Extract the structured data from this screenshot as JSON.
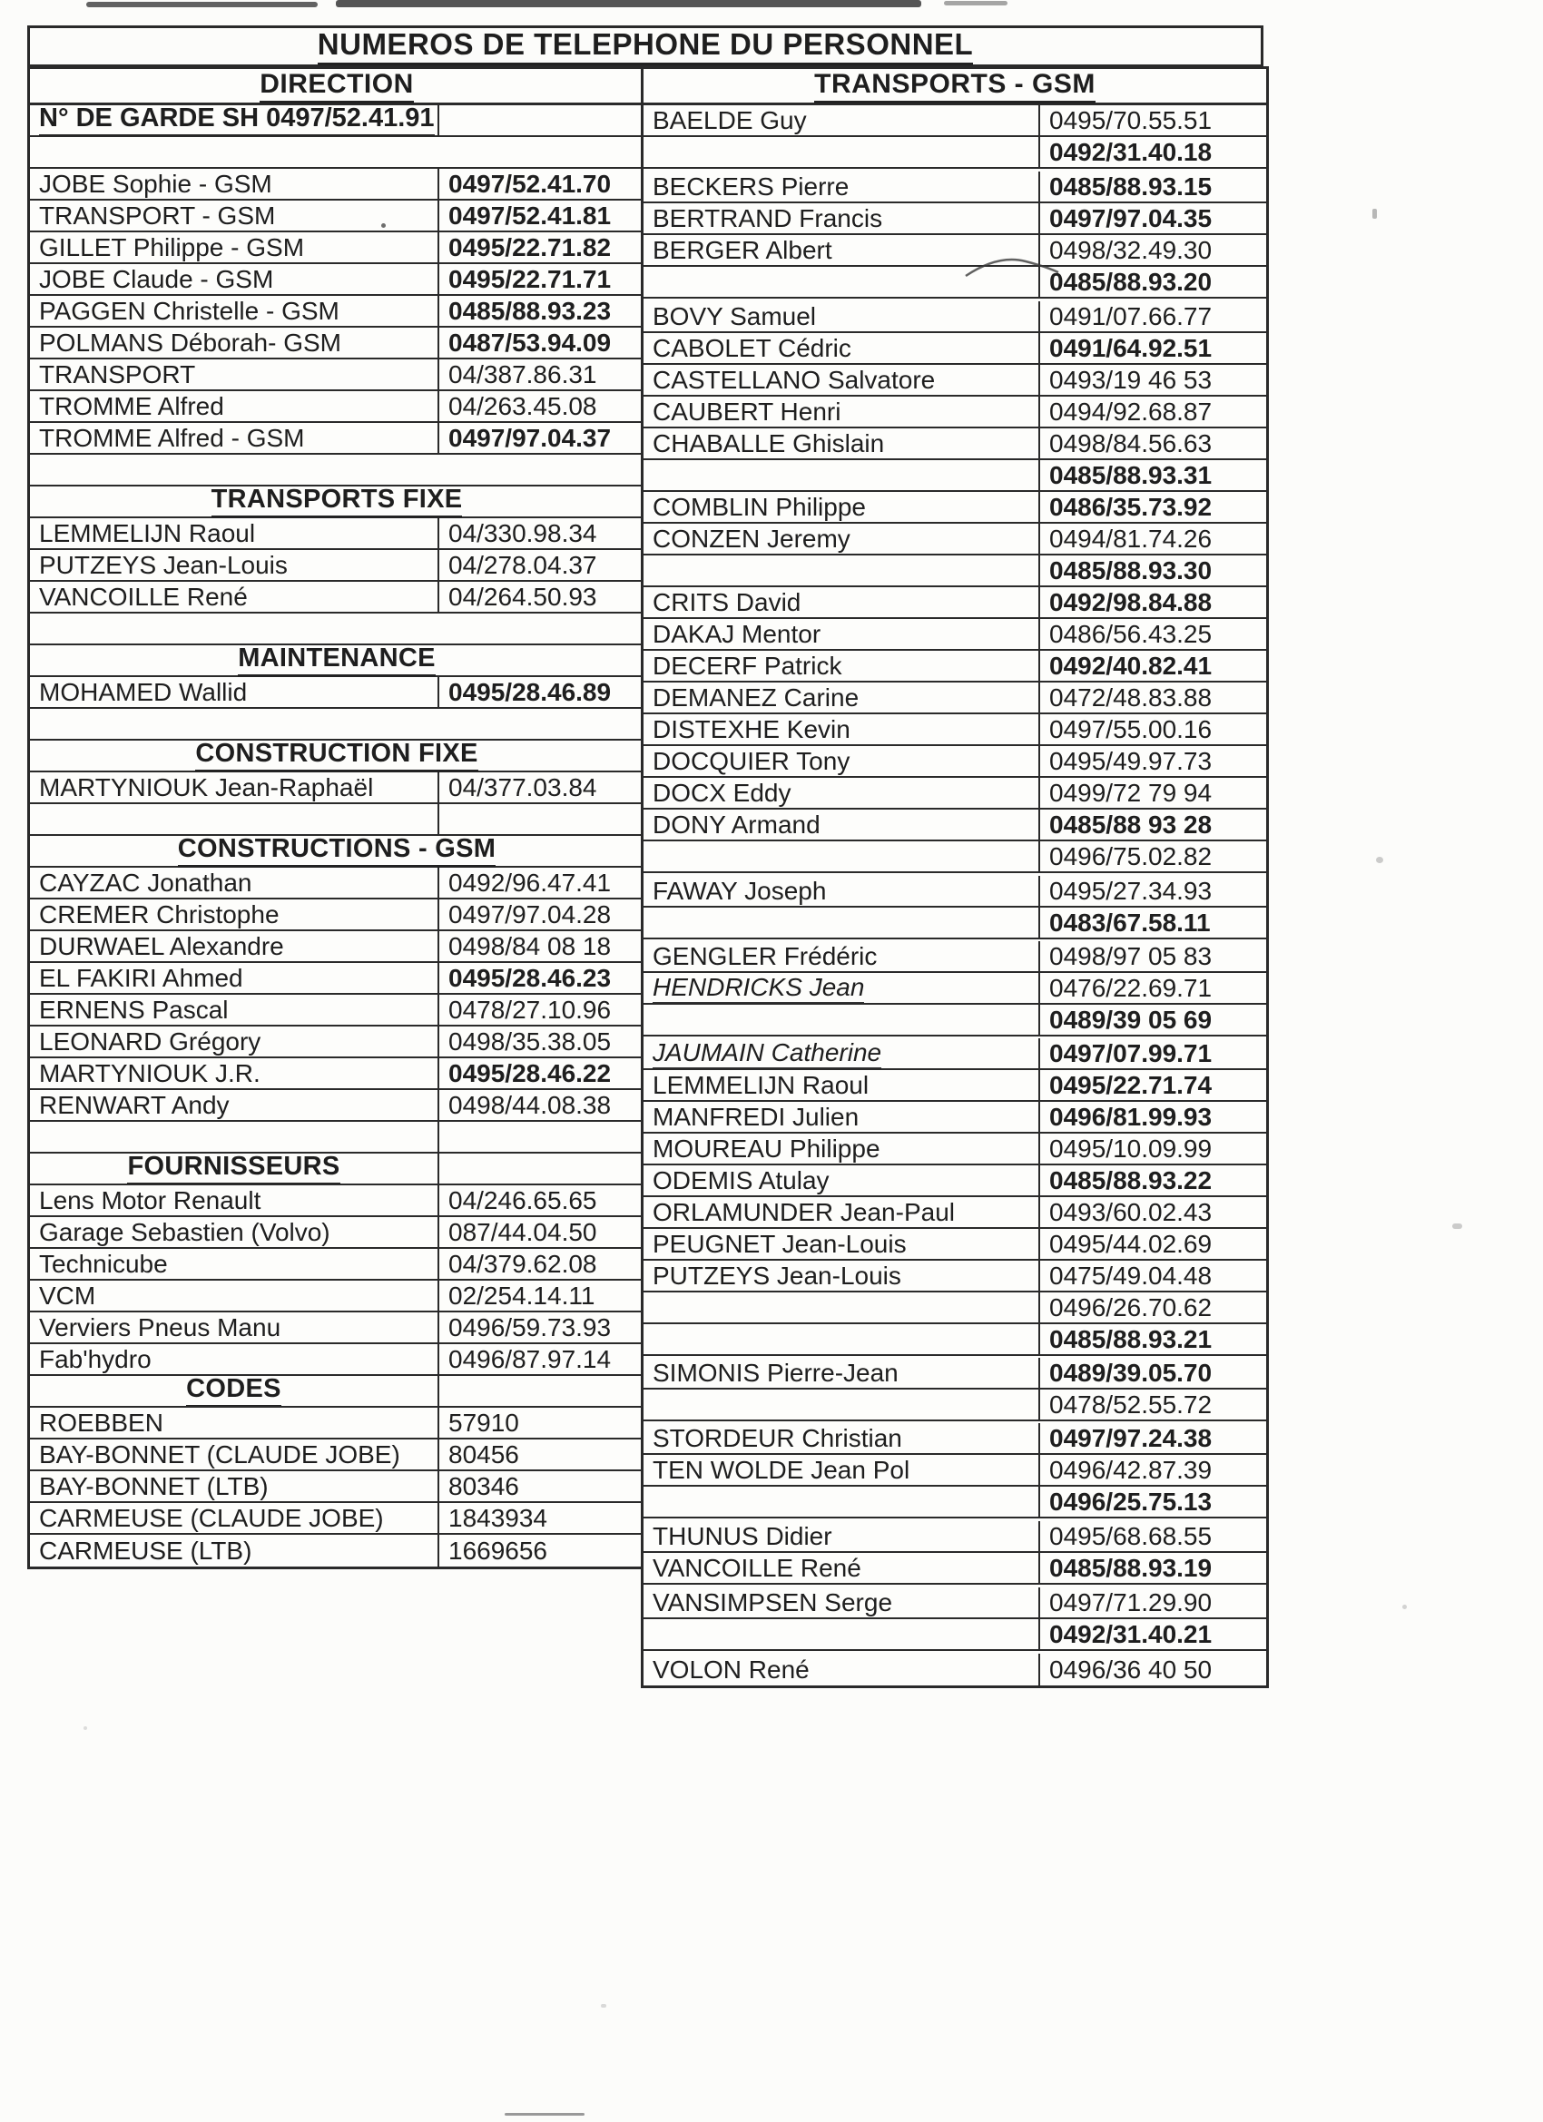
{
  "title": "NUMEROS DE TELEPHONE DU PERSONNEL",
  "left": {
    "header": "DIRECTION",
    "rows": [
      {
        "t": "guard",
        "name": "N° DE GARDE SH 0497/52.41.91"
      },
      {
        "t": "blank"
      },
      {
        "t": "row",
        "name": "JOBE Sophie - GSM",
        "num": "0497/52.41.70",
        "nb": true
      },
      {
        "t": "row",
        "name": "TRANSPORT - GSM",
        "num": "0497/52.41.81",
        "nb": true
      },
      {
        "t": "row",
        "name": "GILLET Philippe - GSM",
        "num": "0495/22.71.82",
        "nb": true
      },
      {
        "t": "row",
        "name": "JOBE Claude - GSM",
        "num": "0495/22.71.71",
        "nb": true
      },
      {
        "t": "row",
        "name": "PAGGEN Christelle - GSM",
        "num": "0485/88.93.23",
        "nb": true
      },
      {
        "t": "row",
        "name": "POLMANS Déborah- GSM",
        "num": "0487/53.94.09",
        "nb": true
      },
      {
        "t": "row",
        "name": "TRANSPORT",
        "num": "04/387.86.31"
      },
      {
        "t": "row",
        "name": "TROMME Alfred",
        "num": "04/263.45.08"
      },
      {
        "t": "row",
        "name": "TROMME Alfred - GSM",
        "num": "0497/97.04.37",
        "nb": true
      },
      {
        "t": "blank"
      },
      {
        "t": "sec",
        "label": "TRANSPORTS FIXE"
      },
      {
        "t": "row",
        "name": "LEMMELIJN Raoul",
        "num": "04/330.98.34"
      },
      {
        "t": "row",
        "name": "PUTZEYS Jean-Louis",
        "num": "04/278.04.37"
      },
      {
        "t": "row",
        "name": "VANCOILLE René",
        "num": "04/264.50.93"
      },
      {
        "t": "blank"
      },
      {
        "t": "sec",
        "label": "MAINTENANCE"
      },
      {
        "t": "row",
        "name": "MOHAMED Wallid",
        "num": "0495/28.46.89",
        "nb": true
      },
      {
        "t": "blank"
      },
      {
        "t": "sec",
        "label": "CONSTRUCTION FIXE"
      },
      {
        "t": "row",
        "name": "MARTYNIOUK Jean-Raphaël",
        "num": "04/377.03.84"
      },
      {
        "t": "blank2"
      },
      {
        "t": "sec",
        "label": "CONSTRUCTIONS - GSM"
      },
      {
        "t": "row",
        "name": "CAYZAC Jonathan",
        "num": "0492/96.47.41"
      },
      {
        "t": "row",
        "name": "CREMER Christophe",
        "num": "0497/97.04.28"
      },
      {
        "t": "row",
        "name": "DURWAEL Alexandre",
        "num": "0498/84 08 18"
      },
      {
        "t": "row",
        "name": "EL FAKIRI Ahmed",
        "num": "0495/28.46.23",
        "nb": true
      },
      {
        "t": "row",
        "name": "ERNENS Pascal",
        "num": "0478/27.10.96"
      },
      {
        "t": "row",
        "name": "LEONARD Grégory",
        "num": "0498/35.38.05"
      },
      {
        "t": "row",
        "name": "MARTYNIOUK J.R.",
        "num": "0495/28.46.22",
        "nb": true
      },
      {
        "t": "row",
        "name": "RENWART Andy",
        "num": "0498/44.08.38"
      },
      {
        "t": "blank2"
      },
      {
        "t": "sec1",
        "label": "FOURNISSEURS"
      },
      {
        "t": "row",
        "name": "Lens Motor Renault",
        "num": "04/246.65.65"
      },
      {
        "t": "row",
        "name": "Garage Sebastien (Volvo)",
        "num": "087/44.04.50"
      },
      {
        "t": "row",
        "name": "Technicube",
        "num": "04/379.62.08"
      },
      {
        "t": "row",
        "name": "VCM",
        "num": "02/254.14.11"
      },
      {
        "t": "row",
        "name": "Verviers Pneus Manu",
        "num": "0496/59.73.93"
      },
      {
        "t": "row",
        "name": "Fab'hydro",
        "num": "0496/87.97.14"
      },
      {
        "t": "sec1",
        "label": "CODES"
      },
      {
        "t": "row",
        "name": "ROEBBEN",
        "num": "57910"
      },
      {
        "t": "row",
        "name": "BAY-BONNET (CLAUDE JOBE)",
        "num": "80456"
      },
      {
        "t": "row",
        "name": "BAY-BONNET (LTB)",
        "num": "80346"
      },
      {
        "t": "row",
        "name": "CARMEUSE (CLAUDE JOBE)",
        "num": "1843934"
      },
      {
        "t": "row",
        "name": "CARMEUSE (LTB)",
        "num": "1669656"
      }
    ]
  },
  "right": {
    "header": "TRANSPORTS - GSM",
    "rows": [
      {
        "name": "BAELDE Guy",
        "num": "0495/70.55.51"
      },
      {
        "name": "",
        "num": "0492/31.40.18",
        "nb": true
      },
      {
        "name": "BECKERS Pierre",
        "num": "0485/88.93.15",
        "nb": true,
        "gap": 3
      },
      {
        "name": "BERTRAND Francis",
        "num": "0497/97.04.35",
        "nb": true
      },
      {
        "name": "BERGER Albert",
        "num": "0498/32.49.30"
      },
      {
        "name": "",
        "num": "0485/88.93.20",
        "nb": true
      },
      {
        "name": "BOVY Samuel",
        "num": "0491/07.66.77",
        "gap": 3
      },
      {
        "name": "CABOLET Cédric",
        "num": "0491/64.92.51",
        "nb": true
      },
      {
        "name": "CASTELLANO Salvatore",
        "num": "0493/19 46 53"
      },
      {
        "name": "CAUBERT Henri",
        "num": "0494/92.68.87"
      },
      {
        "name": "CHABALLE Ghislain",
        "num": "0498/84.56.63"
      },
      {
        "name": "",
        "num": "0485/88.93.31",
        "nb": true
      },
      {
        "name": "COMBLIN Philippe",
        "num": "0486/35.73.92",
        "nb": true
      },
      {
        "name": "CONZEN Jeremy",
        "num": "0494/81.74.26"
      },
      {
        "name": "",
        "num": "0485/88.93.30",
        "nb": true
      },
      {
        "name": "CRITS David",
        "num": "0492/98.84.88",
        "nb": true
      },
      {
        "name": "DAKAJ Mentor",
        "num": "0486/56.43.25"
      },
      {
        "name": "DECERF Patrick",
        "num": "0492/40.82.41",
        "nb": true
      },
      {
        "name": "DEMANEZ Carine",
        "num": "0472/48.83.88"
      },
      {
        "name": "DISTEXHE Kevin",
        "num": "0497/55.00.16"
      },
      {
        "name": "DOCQUIER Tony",
        "num": "0495/49.97.73"
      },
      {
        "name": "DOCX Eddy",
        "num": "0499/72 79 94"
      },
      {
        "name": "DONY Armand",
        "num": "0485/88 93 28",
        "nb": true
      },
      {
        "name": "",
        "num": "0496/75.02.82"
      },
      {
        "name": "FAWAY Joseph",
        "num": "0495/27.34.93",
        "gap": 3
      },
      {
        "name": "",
        "num": "0483/67.58.11",
        "nb": true
      },
      {
        "name": "GENGLER Frédéric",
        "num": "0498/97 05 83",
        "gap": 2
      },
      {
        "name": "HENDRICKS Jean",
        "num": "0476/22.69.71",
        "it": true
      },
      {
        "name": "",
        "num": "0489/39 05 69",
        "nb": true
      },
      {
        "name": "JAUMAIN Catherine",
        "num": "0497/07.99.71",
        "nb": true,
        "it": true,
        "gap": 2
      },
      {
        "name": "LEMMELIJN Raoul",
        "num": "0495/22.71.74",
        "nb": true
      },
      {
        "name": "MANFREDI Julien",
        "num": "0496/81.99.93",
        "nb": true
      },
      {
        "name": "MOUREAU Philippe",
        "num": "0495/10.09.99"
      },
      {
        "name": "ODEMIS Atulay",
        "num": "0485/88.93.22",
        "nb": true
      },
      {
        "name": "ORLAMUNDER Jean-Paul",
        "num": "0493/60.02.43"
      },
      {
        "name": "PEUGNET Jean-Louis",
        "num": "0495/44.02.69"
      },
      {
        "name": "PUTZEYS Jean-Louis",
        "num": "0475/49.04.48"
      },
      {
        "name": "",
        "num": "0496/26.70.62"
      },
      {
        "name": "",
        "num": "0485/88.93.21",
        "nb": true
      },
      {
        "name": "SIMONIS Pierre-Jean",
        "num": "0489/39.05.70",
        "nb": true,
        "gap": 2
      },
      {
        "name": "",
        "num": "0478/52.55.72"
      },
      {
        "name": "STORDEUR Christian",
        "num": "0497/97.24.38",
        "nb": true,
        "gap": 2
      },
      {
        "name": "TEN WOLDE Jean Pol",
        "num": "0496/42.87.39"
      },
      {
        "name": "",
        "num": "0496/25.75.13",
        "nb": true
      },
      {
        "name": "THUNUS Didier",
        "num": "0495/68.68.55",
        "gap": 3
      },
      {
        "name": "VANCOILLE René",
        "num": "0485/88.93.19",
        "nb": true
      },
      {
        "name": "VANSIMPSEN Serge",
        "num": "0497/71.29.90",
        "gap": 3
      },
      {
        "name": "",
        "num": "0492/31.40.21",
        "nb": true
      },
      {
        "name": "VOLON René",
        "num": "0496/36 40 50",
        "gap": 3
      }
    ]
  },
  "artifacts": {
    "pen_mark": "handwritten-curve",
    "scan_streak": "dark-top-edge"
  },
  "colors": {
    "paper": "#fcfcfa",
    "ink": "#1e1e1e",
    "border": "#2a2a2a"
  }
}
